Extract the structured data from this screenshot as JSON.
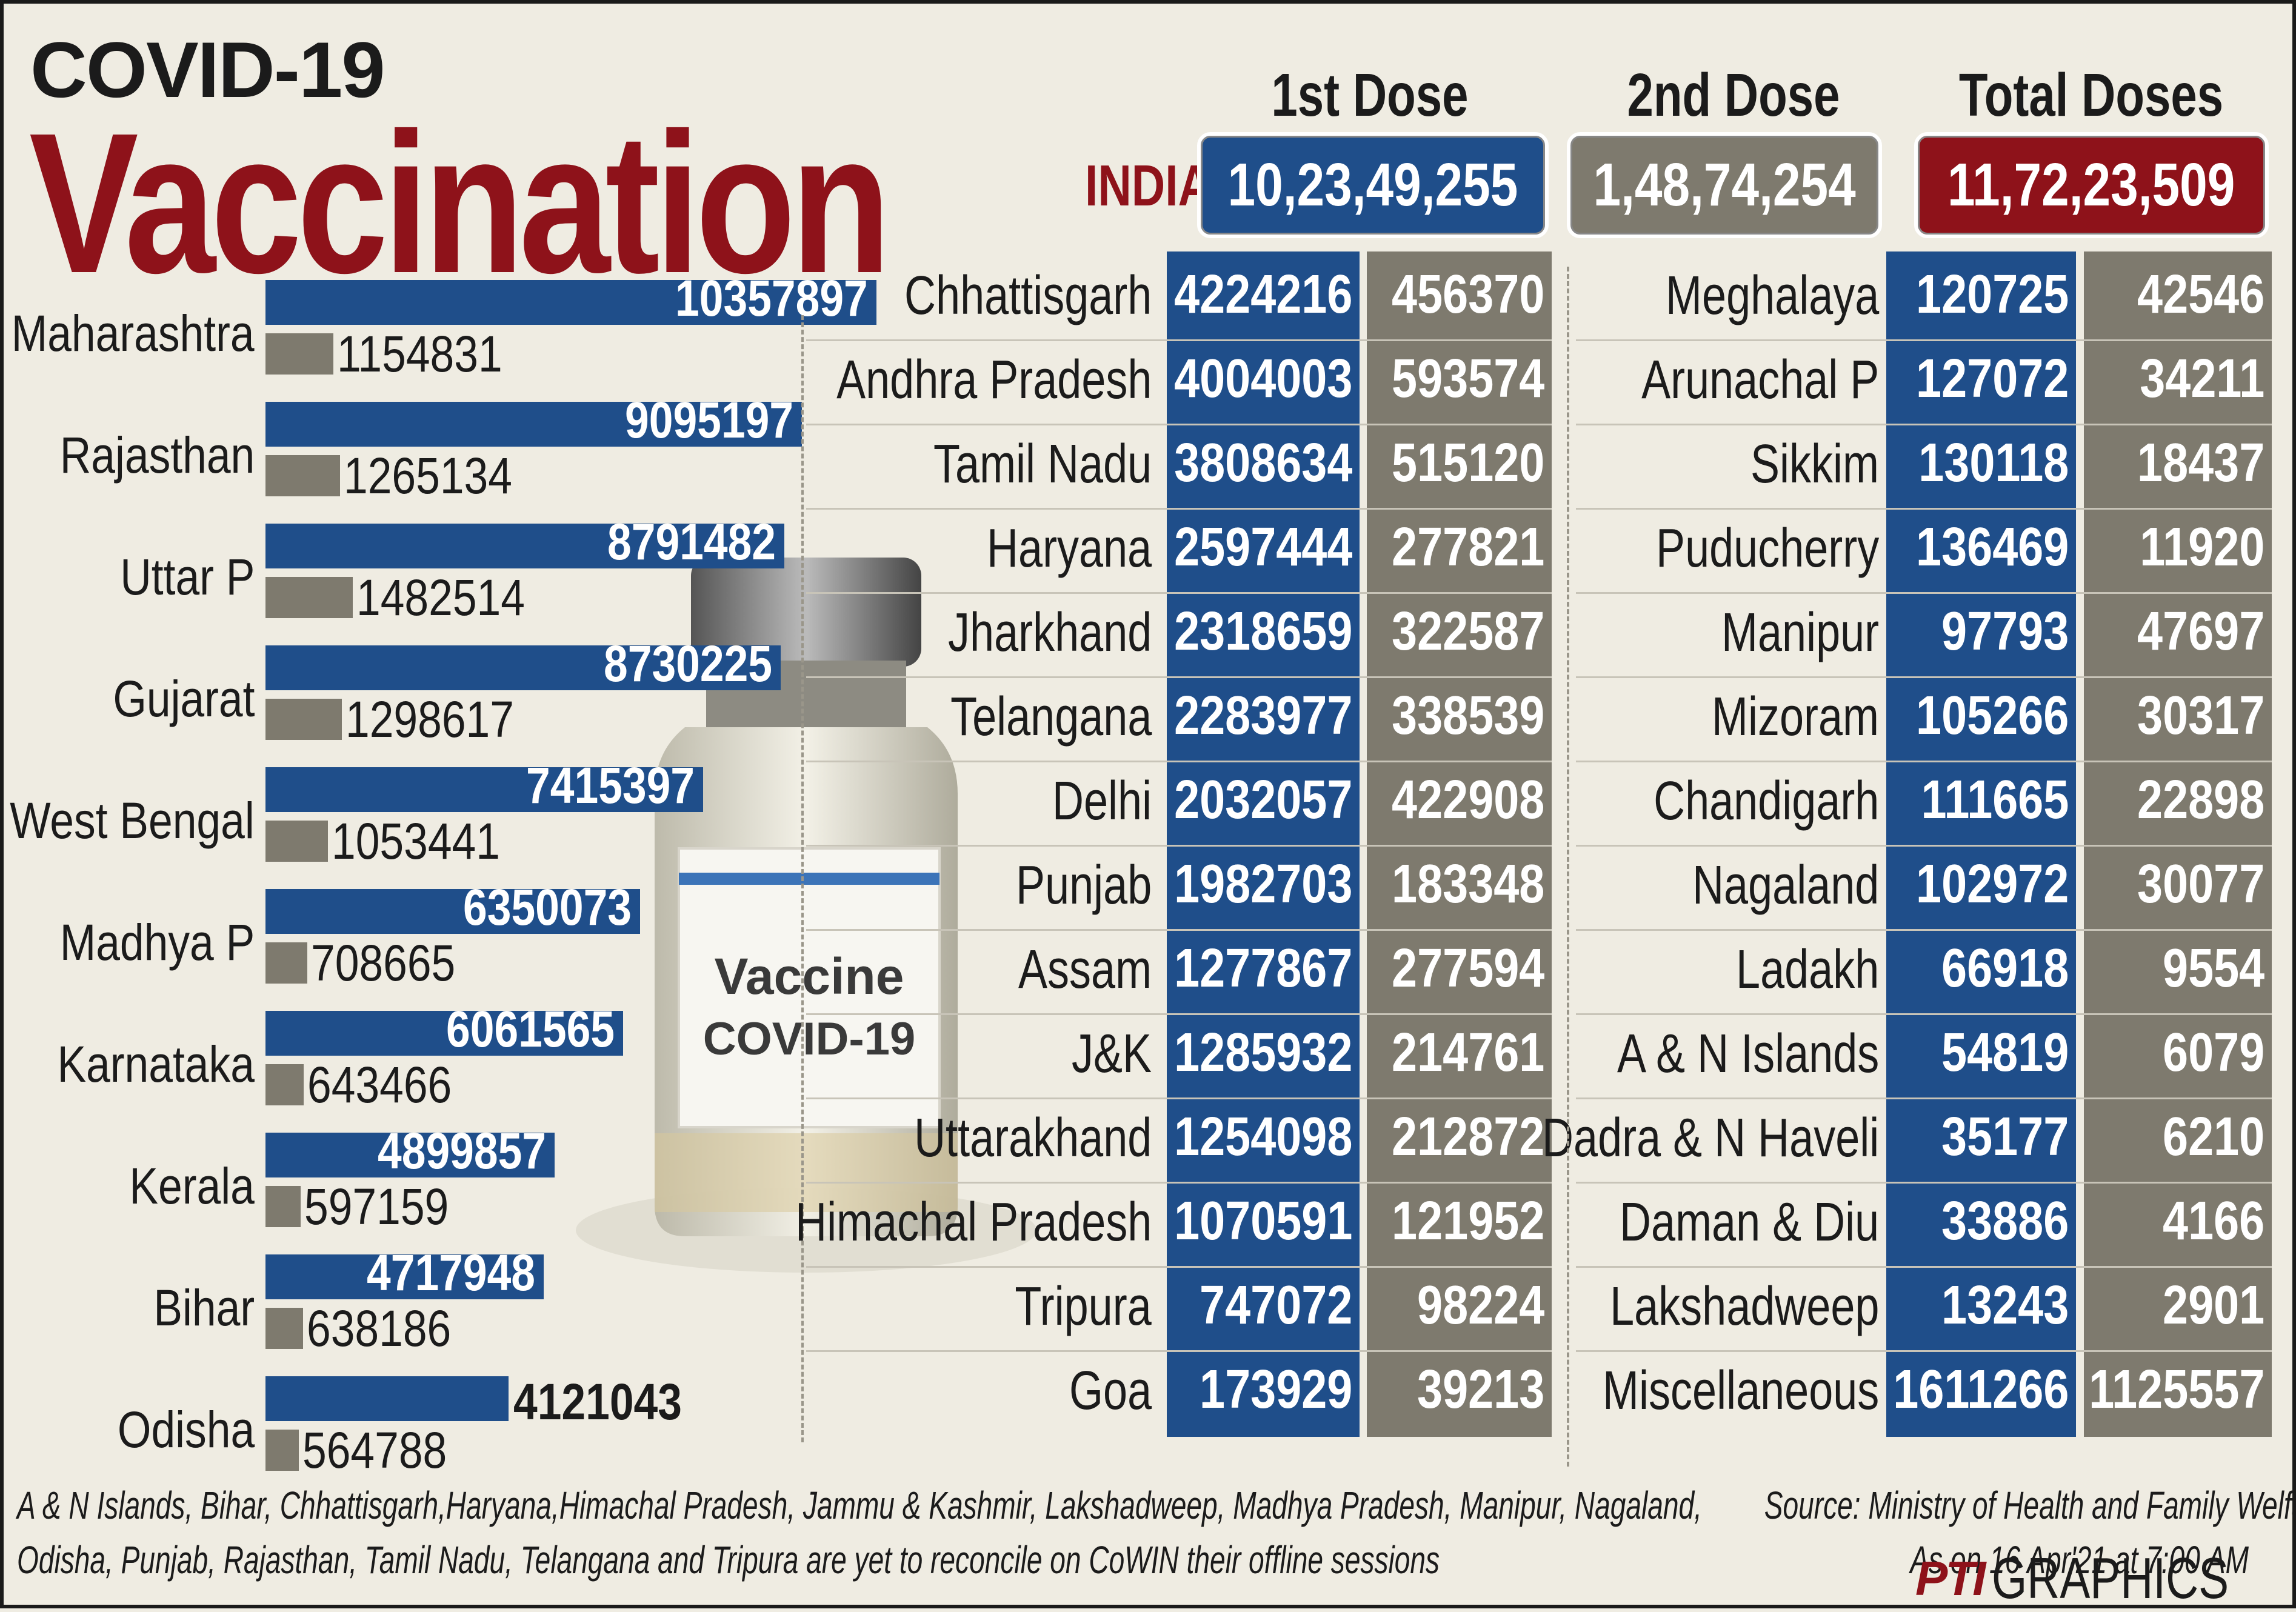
{
  "header": {
    "kicker": "COVID-19",
    "title": "Vaccination",
    "col_first": "1st Dose",
    "col_second": "2nd Dose",
    "col_total": "Total Doses",
    "country": "INDIA",
    "india_first": "10,23,49,255",
    "india_second": "1,48,74,254",
    "india_total": "11,72,23,509"
  },
  "colors": {
    "first_dose": "#1f4e8a",
    "second_dose": "#7e7a6e",
    "accent": "#8e121a"
  },
  "illustration": {
    "label_line1": "Vaccine",
    "label_line2": "COVID-19"
  },
  "chart_data": [
    {
      "type": "bar",
      "orientation": "horizontal",
      "categories": [
        "Maharashtra",
        "Rajasthan",
        "Uttar P",
        "Gujarat",
        "West Bengal",
        "Madhya P",
        "Karnataka",
        "Kerala",
        "Bihar",
        "Odisha"
      ],
      "series": [
        {
          "values": [
            10357897,
            9095197,
            8791482,
            8730225,
            7415397,
            6350073,
            6061565,
            4899857,
            4717948,
            4121043
          ]
        },
        {
          "values": [
            1154831,
            1265134,
            1482514,
            1298617,
            1053441,
            708665,
            643466,
            597159,
            638186,
            564788
          ]
        }
      ],
      "xlim": [
        0,
        10357897
      ]
    },
    {
      "type": "table",
      "rows": [
        [
          "Chhattisgarh",
          "4224216",
          "456370"
        ],
        [
          "Andhra Pradesh",
          "4004003",
          "593574"
        ],
        [
          "Tamil Nadu",
          "3808634",
          "515120"
        ],
        [
          "Haryana",
          "2597444",
          "277821"
        ],
        [
          "Jharkhand",
          "2318659",
          "322587"
        ],
        [
          "Telangana",
          "2283977",
          "338539"
        ],
        [
          "Delhi",
          "2032057",
          "422908"
        ],
        [
          "Punjab",
          "1982703",
          "183348"
        ],
        [
          "Assam",
          "1277867",
          "277594"
        ],
        [
          "J&K",
          "1285932",
          "214761"
        ],
        [
          "Uttarakhand",
          "1254098",
          "212872"
        ],
        [
          "Himachal Pradesh",
          "1070591",
          "121952"
        ],
        [
          "Tripura",
          "747072",
          "98224"
        ],
        [
          "Goa",
          "173929",
          "39213"
        ]
      ]
    },
    {
      "type": "table",
      "rows": [
        [
          "Meghalaya",
          "120725",
          "42546"
        ],
        [
          "Arunachal P",
          "127072",
          "34211"
        ],
        [
          "Sikkim",
          "130118",
          "18437"
        ],
        [
          "Puducherry",
          "136469",
          "11920"
        ],
        [
          "Manipur",
          "97793",
          "47697"
        ],
        [
          "Mizoram",
          "105266",
          "30317"
        ],
        [
          "Chandigarh",
          "111665",
          "22898"
        ],
        [
          "Nagaland",
          "102972",
          "30077"
        ],
        [
          "Ladakh",
          "66918",
          "9554"
        ],
        [
          "A & N Islands",
          "54819",
          "6079"
        ],
        [
          "Dadra & N Haveli",
          "35177",
          "6210"
        ],
        [
          "Daman & Diu",
          "33886",
          "4166"
        ],
        [
          "Lakshadweep",
          "13243",
          "2901"
        ],
        [
          "Miscellaneous",
          "1611266",
          "1125557"
        ]
      ]
    }
  ],
  "footer": {
    "note_line1": "A & N Islands, Bihar, Chhattisgarh,Haryana,Himachal Pradesh, Jammu & Kashmir, Lakshadweep, Madhya Pradesh, Manipur, Nagaland,",
    "note_line2": "Odisha, Punjab, Rajasthan, Tamil Nadu, Telangana and Tripura are yet to reconcile on CoWIN their offline sessions",
    "source": "Source: Ministry of Health and Family Welfare",
    "asof": "As on 16 Apr'21 at 7:00 AM",
    "logo_mark": "PTI",
    "logo_text": "GRAPHICS"
  }
}
